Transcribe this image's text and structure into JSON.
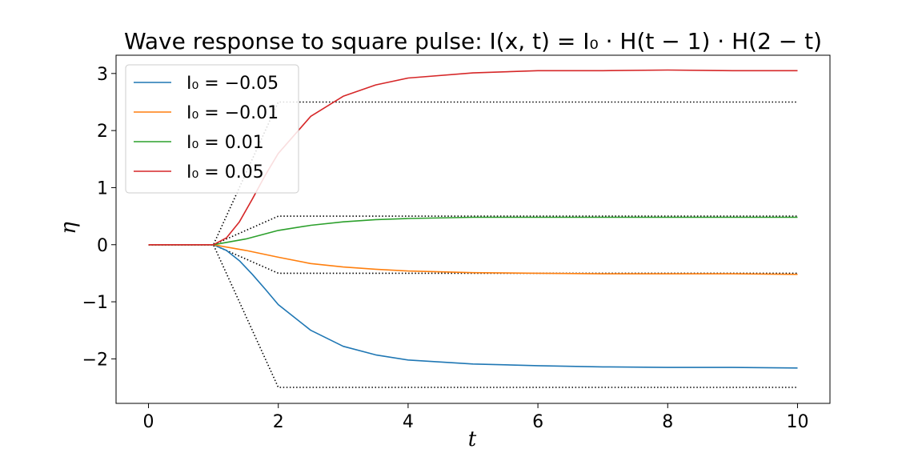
{
  "chart_data": {
    "type": "line",
    "title": "Wave response to square pulse: I(x, t) = I₀ · H(t − 1) · H(2 − t)",
    "xlabel": "t",
    "ylabel": "η",
    "xlim": [
      -0.5,
      10.5
    ],
    "ylim": [
      -2.78,
      3.32
    ],
    "xticks": [
      0,
      2,
      4,
      6,
      8,
      10
    ],
    "xtick_labels": [
      "0",
      "2",
      "4",
      "6",
      "8",
      "10"
    ],
    "yticks": [
      -2,
      -1,
      0,
      1,
      2,
      3
    ],
    "ytick_labels": [
      "−2",
      "−1",
      "0",
      "1",
      "2",
      "3"
    ],
    "grid": false,
    "legend_position": "top-left",
    "series": [
      {
        "name": "I₀ = −0.05",
        "color": "#1f77b4",
        "x": [
          0,
          1,
          1.2,
          1.4,
          1.6,
          1.8,
          2,
          2.5,
          3,
          3.5,
          4,
          5,
          6,
          7,
          8,
          9,
          10
        ],
        "y": [
          0,
          0,
          -0.1,
          -0.28,
          -0.52,
          -0.78,
          -1.05,
          -1.5,
          -1.78,
          -1.93,
          -2.02,
          -2.09,
          -2.12,
          -2.14,
          -2.15,
          -2.15,
          -2.16
        ]
      },
      {
        "name": "I₀ = −0.01",
        "color": "#ff7f0e",
        "x": [
          0,
          1,
          1.5,
          2,
          2.5,
          3,
          3.5,
          4,
          5,
          6,
          7,
          8,
          9,
          10
        ],
        "y": [
          0,
          0,
          -0.1,
          -0.22,
          -0.33,
          -0.39,
          -0.43,
          -0.46,
          -0.49,
          -0.5,
          -0.51,
          -0.51,
          -0.51,
          -0.52
        ]
      },
      {
        "name": "I₀ = 0.01",
        "color": "#2ca02c",
        "x": [
          0,
          1,
          1.5,
          2,
          2.5,
          3,
          3.5,
          4,
          5,
          6,
          7,
          8,
          9,
          10
        ],
        "y": [
          0,
          0,
          0.1,
          0.25,
          0.34,
          0.4,
          0.44,
          0.46,
          0.48,
          0.48,
          0.48,
          0.48,
          0.48,
          0.48
        ]
      },
      {
        "name": "I₀ = 0.05",
        "color": "#d62728",
        "x": [
          0,
          1,
          1.2,
          1.4,
          1.6,
          1.8,
          2,
          2.5,
          3,
          3.5,
          4,
          5,
          6,
          7,
          8,
          9,
          10
        ],
        "y": [
          0,
          0,
          0.12,
          0.4,
          0.8,
          1.22,
          1.6,
          2.25,
          2.6,
          2.8,
          2.92,
          3.01,
          3.05,
          3.05,
          3.06,
          3.05,
          3.05
        ]
      }
    ],
    "reference_lines": [
      {
        "style": "dotted",
        "color": "#000000",
        "x": [
          0,
          1,
          2,
          10
        ],
        "y": [
          0,
          0,
          2.5,
          2.5
        ]
      },
      {
        "style": "dotted",
        "color": "#000000",
        "x": [
          0,
          1,
          2,
          10
        ],
        "y": [
          0,
          0,
          0.5,
          0.5
        ]
      },
      {
        "style": "dotted",
        "color": "#000000",
        "x": [
          0,
          1,
          2,
          10
        ],
        "y": [
          0,
          0,
          -0.5,
          -0.5
        ]
      },
      {
        "style": "dotted",
        "color": "#000000",
        "x": [
          0,
          1,
          2,
          10
        ],
        "y": [
          0,
          0,
          -2.5,
          -2.5
        ]
      }
    ]
  }
}
